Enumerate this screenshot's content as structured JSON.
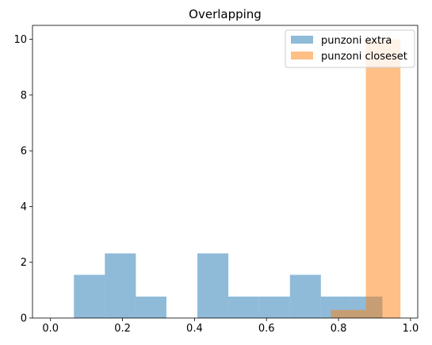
{
  "chart_data": {
    "type": "bar",
    "title": "Overlapping",
    "xlabel": "",
    "ylabel": "",
    "xlim": [
      -0.05,
      1.02
    ],
    "ylim": [
      0,
      10.5
    ],
    "x_ticks": [
      0.0,
      0.2,
      0.4,
      0.6,
      0.8,
      1.0
    ],
    "x_tick_labels": [
      "0.0",
      "0.2",
      "0.4",
      "0.6",
      "0.8",
      "1.0"
    ],
    "y_ticks": [
      0,
      2,
      4,
      6,
      8,
      10
    ],
    "y_tick_labels": [
      "0",
      "2",
      "4",
      "6",
      "8",
      "10"
    ],
    "grid": false,
    "legend_position": "top-right",
    "series": [
      {
        "name": "punzoni extra",
        "color": "#1f77b4",
        "alpha": 0.5,
        "bins": [
          {
            "x0": 0.065,
            "x1": 0.151,
            "height": 1.55
          },
          {
            "x0": 0.151,
            "x1": 0.237,
            "height": 2.32
          },
          {
            "x0": 0.237,
            "x1": 0.322,
            "height": 0.77
          },
          {
            "x0": 0.322,
            "x1": 0.408,
            "height": 0
          },
          {
            "x0": 0.408,
            "x1": 0.494,
            "height": 2.32
          },
          {
            "x0": 0.494,
            "x1": 0.579,
            "height": 0.77
          },
          {
            "x0": 0.579,
            "x1": 0.665,
            "height": 0.77
          },
          {
            "x0": 0.665,
            "x1": 0.751,
            "height": 1.55
          },
          {
            "x0": 0.751,
            "x1": 0.836,
            "height": 0.77
          },
          {
            "x0": 0.836,
            "x1": 0.922,
            "height": 0.77
          }
        ]
      },
      {
        "name": "punzoni closeset",
        "color": "#ff7f0e",
        "alpha": 0.5,
        "bins": [
          {
            "x0": 0.779,
            "x1": 0.827,
            "height": 0.29
          },
          {
            "x0": 0.827,
            "x1": 0.876,
            "height": 0.29
          },
          {
            "x0": 0.876,
            "x1": 0.924,
            "height": 10.0
          },
          {
            "x0": 0.924,
            "x1": 0.972,
            "height": 10.0
          }
        ]
      }
    ]
  }
}
